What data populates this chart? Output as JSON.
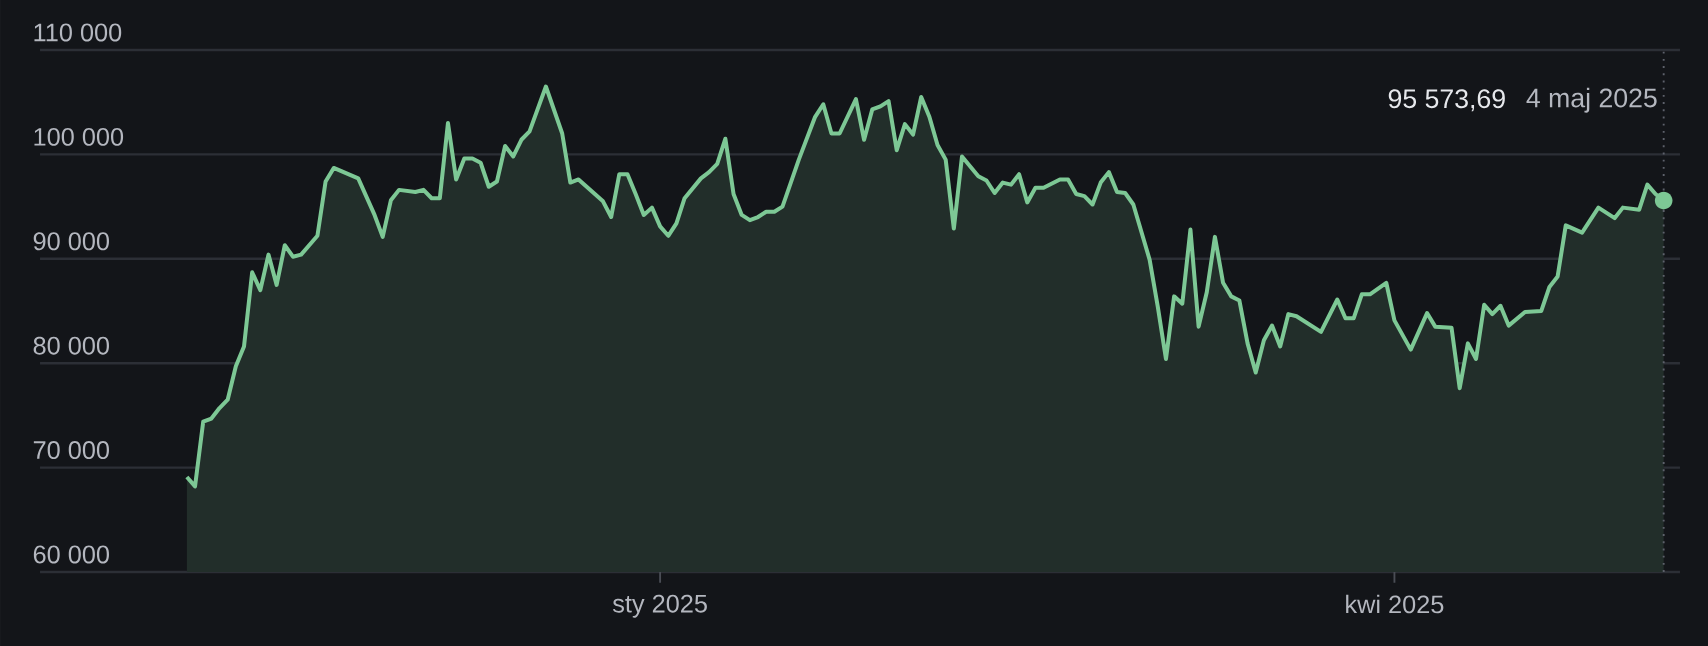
{
  "chart_data": {
    "type": "area",
    "x": [
      "2024-11-04",
      "2024-11-05",
      "2024-11-06",
      "2024-11-07",
      "2024-11-08",
      "2024-11-09",
      "2024-11-10",
      "2024-11-11",
      "2024-11-12",
      "2024-11-13",
      "2024-11-14",
      "2024-11-15",
      "2024-11-16",
      "2024-11-17",
      "2024-11-18",
      "2024-11-20",
      "2024-11-21",
      "2024-11-22",
      "2024-11-25",
      "2024-11-27",
      "2024-11-28",
      "2024-11-29",
      "2024-11-30",
      "2024-12-02",
      "2024-12-03",
      "2024-12-04",
      "2024-12-05",
      "2024-12-06",
      "2024-12-07",
      "2024-12-08",
      "2024-12-09",
      "2024-12-10",
      "2024-12-11",
      "2024-12-12",
      "2024-12-13",
      "2024-12-14",
      "2024-12-15",
      "2024-12-16",
      "2024-12-18",
      "2024-12-20",
      "2024-12-21",
      "2024-12-22",
      "2024-12-24",
      "2024-12-25",
      "2024-12-26",
      "2024-12-27",
      "2024-12-28",
      "2024-12-29",
      "2024-12-30",
      "2024-12-31",
      "2025-01-01",
      "2025-01-02",
      "2025-01-03",
      "2025-01-04",
      "2025-01-06",
      "2025-01-07",
      "2025-01-08",
      "2025-01-09",
      "2025-01-10",
      "2025-01-11",
      "2025-01-12",
      "2025-01-13",
      "2025-01-14",
      "2025-01-15",
      "2025-01-16",
      "2025-01-18",
      "2025-01-20",
      "2025-01-21",
      "2025-01-22",
      "2025-01-23",
      "2025-01-25",
      "2025-01-26",
      "2025-01-27",
      "2025-01-28",
      "2025-01-29",
      "2025-01-30",
      "2025-01-31",
      "2025-02-01",
      "2025-02-02",
      "2025-02-03",
      "2025-02-04",
      "2025-02-05",
      "2025-02-06",
      "2025-02-07",
      "2025-02-09",
      "2025-02-10",
      "2025-02-11",
      "2025-02-12",
      "2025-02-13",
      "2025-02-14",
      "2025-02-15",
      "2025-02-16",
      "2025-02-17",
      "2025-02-19",
      "2025-02-20",
      "2025-02-21",
      "2025-02-22",
      "2025-02-23",
      "2025-02-24",
      "2025-02-25",
      "2025-02-26",
      "2025-02-27",
      "2025-02-28",
      "2025-03-02",
      "2025-03-03",
      "2025-03-04",
      "2025-03-05",
      "2025-03-06",
      "2025-03-07",
      "2025-03-08",
      "2025-03-09",
      "2025-03-10",
      "2025-03-11",
      "2025-03-12",
      "2025-03-13",
      "2025-03-14",
      "2025-03-15",
      "2025-03-16",
      "2025-03-17",
      "2025-03-18",
      "2025-03-19",
      "2025-03-20",
      "2025-03-23",
      "2025-03-25",
      "2025-03-26",
      "2025-03-27",
      "2025-03-28",
      "2025-03-29",
      "2025-03-31",
      "2025-04-01",
      "2025-04-03",
      "2025-04-05",
      "2025-04-06",
      "2025-04-08",
      "2025-04-09",
      "2025-04-10",
      "2025-04-11",
      "2025-04-12",
      "2025-04-13",
      "2025-04-14",
      "2025-04-15",
      "2025-04-17",
      "2025-04-19",
      "2025-04-20",
      "2025-04-21",
      "2025-04-22",
      "2025-04-24",
      "2025-04-26",
      "2025-04-28",
      "2025-04-29",
      "2025-05-01",
      "2025-05-02",
      "2025-05-03",
      "2025-05-04"
    ],
    "values": [
      69100,
      68200,
      74400,
      74700,
      75700,
      76500,
      79700,
      81600,
      88700,
      87000,
      90400,
      87500,
      91300,
      90200,
      90400,
      92200,
      97400,
      98700,
      97700,
      94200,
      92100,
      95600,
      96600,
      96400,
      96600,
      95800,
      95800,
      103000,
      97600,
      99600,
      99600,
      99200,
      96900,
      97400,
      100800,
      99800,
      101400,
      102200,
      106500,
      102000,
      97300,
      97600,
      96200,
      95500,
      94000,
      98100,
      98100,
      96200,
      94200,
      94900,
      93100,
      92200,
      93400,
      95800,
      97700,
      98300,
      99100,
      101500,
      96200,
      94200,
      93700,
      94000,
      94500,
      94500,
      95000,
      99500,
      103600,
      104800,
      102000,
      102000,
      105300,
      101400,
      104300,
      104600,
      105100,
      100400,
      102900,
      101900,
      105500,
      103600,
      100900,
      99500,
      92900,
      99800,
      97900,
      97500,
      96300,
      97300,
      97100,
      98100,
      95400,
      96800,
      96800,
      97600,
      97600,
      96200,
      96000,
      95200,
      97300,
      98300,
      96400,
      96300,
      95200,
      89900,
      85400,
      80400,
      86400,
      85700,
      92800,
      83500,
      86800,
      92100,
      87700,
      86400,
      86000,
      81900,
      79100,
      82200,
      83600,
      81600,
      84700,
      84500,
      83000,
      86100,
      84300,
      84300,
      86600,
      86600,
      87700,
      84100,
      81300,
      84800,
      83500,
      83400,
      77600,
      81900,
      80400,
      85600,
      84700,
      85500,
      83600,
      84900,
      85000,
      87300,
      88300,
      93200,
      92500,
      94900,
      93900,
      94900,
      94700,
      97100,
      96200,
      95573.69
    ],
    "color": "#7dc895",
    "xlim": [
      "2024-10-17",
      "2025-05-06"
    ],
    "xticks": [
      {
        "value": "2025-01-01",
        "label": "sty 2025"
      },
      {
        "value": "2025-04-01",
        "label": "kwi 2025"
      }
    ],
    "ylim": [
      60000,
      110000
    ],
    "yticks": [
      {
        "value": 60000,
        "label": "60 000"
      },
      {
        "value": 70000,
        "label": "70 000"
      },
      {
        "value": 80000,
        "label": "80 000"
      },
      {
        "value": 90000,
        "label": "90 000"
      },
      {
        "value": 100000,
        "label": "100 000"
      },
      {
        "value": 110000,
        "label": "110 000"
      }
    ],
    "grid": "y",
    "ref_lines": [
      {
        "axis": "x",
        "value": "2025-05-04",
        "line_style": "dotted",
        "color": "#5d616b"
      }
    ],
    "annotations": [
      "95 573,69",
      "4 maj 2025"
    ]
  }
}
